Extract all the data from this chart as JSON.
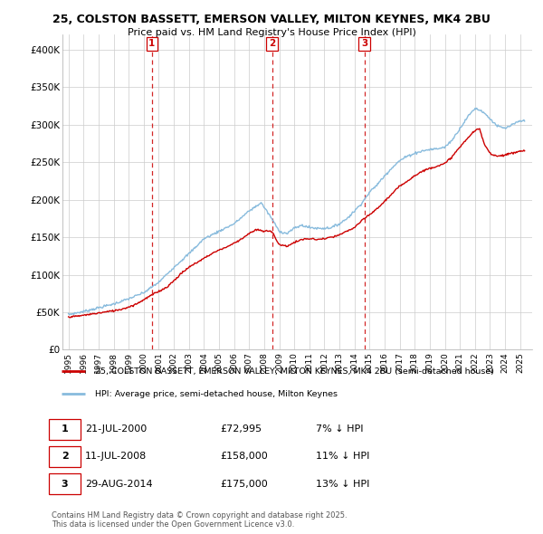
{
  "title": "25, COLSTON BASSETT, EMERSON VALLEY, MILTON KEYNES, MK4 2BU",
  "subtitle": "Price paid vs. HM Land Registry's House Price Index (HPI)",
  "legend_line1": "25, COLSTON BASSETT, EMERSON VALLEY, MILTON KEYNES, MK4 2BU (semi-detached house)",
  "legend_line2": "HPI: Average price, semi-detached house, Milton Keynes",
  "transactions": [
    {
      "num": 1,
      "date": "21-JUL-2000",
      "price": "£72,995",
      "pct": "7% ↓ HPI",
      "year": 2000.54
    },
    {
      "num": 2,
      "date": "11-JUL-2008",
      "price": "£158,000",
      "pct": "11% ↓ HPI",
      "year": 2008.53
    },
    {
      "num": 3,
      "date": "29-AUG-2014",
      "price": "£175,000",
      "pct": "13% ↓ HPI",
      "year": 2014.66
    }
  ],
  "footer": "Contains HM Land Registry data © Crown copyright and database right 2025.\nThis data is licensed under the Open Government Licence v3.0.",
  "ylim": [
    0,
    420000
  ],
  "yticks": [
    0,
    50000,
    100000,
    150000,
    200000,
    250000,
    300000,
    350000,
    400000
  ],
  "ytick_labels": [
    "£0",
    "£50K",
    "£100K",
    "£150K",
    "£200K",
    "£250K",
    "£300K",
    "£350K",
    "£400K"
  ],
  "xlim_start": 1994.6,
  "xlim_end": 2025.8,
  "red_color": "#cc0000",
  "blue_color": "#88bbdd",
  "vline_color": "#cc0000",
  "background_color": "#ffffff",
  "grid_color": "#cccccc",
  "hpi_base_points": [
    [
      1995.0,
      47000
    ],
    [
      1996.0,
      51000
    ],
    [
      1997.0,
      56000
    ],
    [
      1998.0,
      61000
    ],
    [
      1999.0,
      68000
    ],
    [
      2000.0,
      76000
    ],
    [
      2001.0,
      90000
    ],
    [
      2002.0,
      110000
    ],
    [
      2003.0,
      128000
    ],
    [
      2004.0,
      148000
    ],
    [
      2005.0,
      158000
    ],
    [
      2006.0,
      168000
    ],
    [
      2007.0,
      185000
    ],
    [
      2007.8,
      196000
    ],
    [
      2008.5,
      175000
    ],
    [
      2009.0,
      158000
    ],
    [
      2009.5,
      155000
    ],
    [
      2010.0,
      162000
    ],
    [
      2010.5,
      166000
    ],
    [
      2011.0,
      163000
    ],
    [
      2011.5,
      162000
    ],
    [
      2012.0,
      162000
    ],
    [
      2012.5,
      163000
    ],
    [
      2013.0,
      168000
    ],
    [
      2013.5,
      175000
    ],
    [
      2014.0,
      185000
    ],
    [
      2014.5,
      196000
    ],
    [
      2015.0,
      210000
    ],
    [
      2015.5,
      220000
    ],
    [
      2016.0,
      232000
    ],
    [
      2016.5,
      243000
    ],
    [
      2017.0,
      252000
    ],
    [
      2017.5,
      258000
    ],
    [
      2018.0,
      262000
    ],
    [
      2018.5,
      265000
    ],
    [
      2019.0,
      267000
    ],
    [
      2019.5,
      268000
    ],
    [
      2020.0,
      270000
    ],
    [
      2020.5,
      280000
    ],
    [
      2021.0,
      295000
    ],
    [
      2021.5,
      310000
    ],
    [
      2022.0,
      322000
    ],
    [
      2022.5,
      318000
    ],
    [
      2023.0,
      308000
    ],
    [
      2023.5,
      298000
    ],
    [
      2024.0,
      295000
    ],
    [
      2024.5,
      300000
    ],
    [
      2025.0,
      305000
    ]
  ],
  "red_base_points": [
    [
      1995.0,
      44000
    ],
    [
      1995.5,
      44500
    ],
    [
      1996.0,
      46000
    ],
    [
      1996.5,
      47500
    ],
    [
      1997.0,
      49000
    ],
    [
      1997.5,
      50500
    ],
    [
      1998.0,
      52000
    ],
    [
      1998.5,
      54000
    ],
    [
      1999.0,
      57000
    ],
    [
      1999.5,
      61000
    ],
    [
      2000.54,
      72995
    ],
    [
      2001.0,
      78000
    ],
    [
      2001.5,
      83000
    ],
    [
      2002.0,
      92000
    ],
    [
      2002.5,
      102000
    ],
    [
      2003.0,
      110000
    ],
    [
      2003.5,
      116000
    ],
    [
      2004.0,
      122000
    ],
    [
      2004.5,
      128000
    ],
    [
      2005.0,
      133000
    ],
    [
      2005.5,
      137000
    ],
    [
      2006.0,
      142000
    ],
    [
      2006.5,
      148000
    ],
    [
      2007.0,
      155000
    ],
    [
      2007.5,
      160000
    ],
    [
      2008.0,
      158000
    ],
    [
      2008.53,
      158000
    ],
    [
      2008.8,
      147000
    ],
    [
      2009.0,
      140000
    ],
    [
      2009.5,
      138000
    ],
    [
      2010.0,
      143000
    ],
    [
      2010.5,
      147000
    ],
    [
      2011.0,
      148000
    ],
    [
      2011.5,
      147000
    ],
    [
      2012.0,
      148000
    ],
    [
      2012.5,
      150000
    ],
    [
      2013.0,
      153000
    ],
    [
      2013.5,
      158000
    ],
    [
      2014.0,
      163000
    ],
    [
      2014.66,
      175000
    ],
    [
      2015.0,
      180000
    ],
    [
      2015.5,
      188000
    ],
    [
      2016.0,
      198000
    ],
    [
      2016.5,
      208000
    ],
    [
      2017.0,
      218000
    ],
    [
      2017.5,
      225000
    ],
    [
      2018.0,
      232000
    ],
    [
      2018.5,
      238000
    ],
    [
      2019.0,
      242000
    ],
    [
      2019.5,
      245000
    ],
    [
      2020.0,
      248000
    ],
    [
      2020.5,
      258000
    ],
    [
      2021.0,
      270000
    ],
    [
      2021.5,
      282000
    ],
    [
      2022.0,
      292000
    ],
    [
      2022.3,
      295000
    ],
    [
      2022.6,
      275000
    ],
    [
      2023.0,
      262000
    ],
    [
      2023.5,
      258000
    ],
    [
      2024.0,
      260000
    ],
    [
      2024.5,
      262000
    ],
    [
      2025.0,
      265000
    ]
  ]
}
